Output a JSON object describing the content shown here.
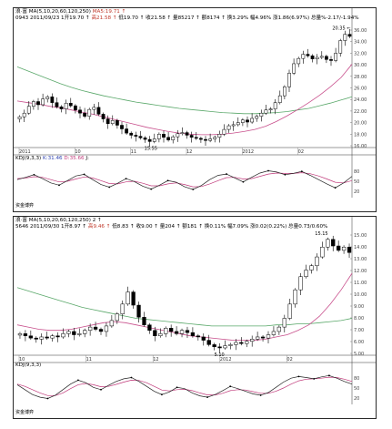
{
  "charts": [
    {
      "id": "top",
      "header_line1": "浪·富 MA(5,10,20,60,120,250)",
      "header_line1_tail": "MA5:19.71 ↑",
      "header_line2_a": "0943 2011/09/23 1开19.70 ↑",
      "header_line2_b": "高21.58 ↑",
      "header_line2_c": "低19.70 ↑ 收21.58 ↑ 量85217 ↑ 额8174 ↑ 换3.29% 幅4.96% 涨1.86(6.97%) 总量%-2.17/-1.94%",
      "high_marker": "20.35 ←",
      "low_marker": "15.55",
      "kdj_label": "KDJ(9,3,3)",
      "kdj_k": "K:31.46",
      "kdj_d": "D:35.66",
      "kdj_j": "J:",
      "footer": "资金博弈"
    },
    {
      "id": "bottom",
      "header_line1": "浪·富 MA(5,10,20,60,120,250) 2 ↑",
      "header_line1_tail": "",
      "header_line2_a": "5646 2011/09/30 1开8.97 ↑",
      "header_line2_b": "高9.46 ↑",
      "header_line2_c": "低8.83 ↑ 收9.00 ↑ 量204 ↑ 额181 ↑ 换0.11% 幅7.09% 涨0.02(0.22%) 总量0.73/0.60%",
      "high_marker": "15.15",
      "low_marker": "5.10",
      "kdj_label": "KDJ(9,3,3)",
      "kdj_k": "",
      "kdj_d": "",
      "kdj_j": "",
      "footer": "资金博弈"
    }
  ],
  "chart_data": [
    {
      "type": "candlestick",
      "title": "",
      "x_ticks": [
        "2011",
        "10",
        "11",
        "12",
        "2012",
        "02"
      ],
      "y_ticks": [
        "36.00",
        "34.00",
        "32.00",
        "30.00",
        "28.00",
        "26.00",
        "24.00",
        "22.00",
        "20.00",
        "18.00",
        "16.00"
      ],
      "ylim": [
        15,
        37
      ],
      "price_path": [
        20.5,
        21.2,
        22.5,
        23.4,
        22.8,
        23.9,
        24.3,
        23.2,
        22.4,
        22.0,
        23.1,
        22.6,
        21.8,
        21.2,
        20.6,
        21.9,
        22.3,
        21.0,
        20.1,
        19.2,
        19.8,
        18.9,
        18.2,
        17.4,
        17.0,
        16.8,
        16.5,
        16.2,
        15.8,
        16.3,
        17.2,
        16.6,
        16.1,
        16.7,
        17.3,
        17.5,
        17.0,
        16.6,
        16.4,
        16.2,
        16.0,
        16.3,
        16.6,
        17.2,
        18.1,
        18.8,
        19.0,
        19.4,
        19.9,
        19.5,
        20.2,
        20.6,
        21.2,
        21.8,
        22.0,
        23.2,
        24.5,
        26.2,
        28.8,
        30.6,
        31.6,
        32.4,
        32.1,
        31.5,
        31.8,
        32.0,
        31.4,
        31.2,
        32.6,
        35.0,
        36.2,
        35.8
      ],
      "ma_long": [
        30,
        29.2,
        28.4,
        27.6,
        26.8,
        26.1,
        25.5,
        25.0,
        24.5,
        24.1,
        23.7,
        23.3,
        23.0,
        22.7,
        22.4,
        22.1,
        21.9,
        21.7,
        21.5,
        21.3,
        21.2,
        21.1,
        21.1,
        21.2,
        21.3,
        21.5,
        21.8,
        22.1,
        22.6,
        23.1,
        23.7,
        24.3
      ],
      "ma_mid": [
        23.5,
        23.2,
        22.9,
        22.5,
        22.2,
        21.8,
        21.4,
        21.0,
        20.5,
        20.0,
        19.5,
        19.0,
        18.5,
        18.1,
        17.7,
        17.4,
        17.2,
        17.1,
        17.1,
        17.2,
        17.4,
        17.7,
        18.1,
        18.7,
        19.6,
        20.7,
        21.9,
        23.2,
        24.6,
        26.2,
        28.0,
        30.5
      ],
      "kdj_k": [
        55,
        62,
        70,
        58,
        45,
        38,
        52,
        66,
        71,
        55,
        40,
        32,
        44,
        58,
        49,
        35,
        26,
        38,
        52,
        47,
        33,
        25,
        37,
        55,
        68,
        72,
        60,
        48,
        62,
        75,
        82,
        78,
        70,
        74,
        80,
        68,
        55,
        42,
        30,
        45,
        65
      ],
      "kdj_d": [
        58,
        60,
        64,
        62,
        55,
        48,
        50,
        57,
        63,
        60,
        52,
        43,
        42,
        48,
        50,
        44,
        36,
        36,
        42,
        45,
        40,
        33,
        34,
        42,
        52,
        61,
        62,
        57,
        58,
        65,
        72,
        75,
        74,
        74,
        76,
        73,
        66,
        57,
        47,
        45,
        52
      ],
      "kdj_yticks": [
        "80",
        "50",
        "20"
      ]
    },
    {
      "type": "candlestick",
      "title": "",
      "x_ticks": [
        "10",
        "11",
        "12",
        "2012",
        "02"
      ],
      "y_ticks": [
        "15.00",
        "14.00",
        "13.00",
        "12.00",
        "11.00",
        "10.00",
        "9.00",
        "8.00",
        "7.00",
        "6.00",
        "5.00"
      ],
      "ylim": [
        4.8,
        15.6
      ],
      "price_path": [
        6.6,
        6.4,
        6.2,
        6.1,
        6.3,
        6.2,
        6.4,
        6.3,
        6.6,
        6.8,
        6.5,
        6.6,
        6.9,
        7.2,
        7.0,
        6.8,
        7.3,
        7.8,
        8.4,
        9.3,
        10.4,
        9.2,
        8.1,
        7.4,
        6.9,
        6.4,
        6.6,
        7.1,
        6.8,
        6.6,
        6.9,
        6.7,
        6.4,
        6.3,
        6.0,
        5.6,
        5.4,
        5.3,
        5.5,
        5.6,
        5.8,
        5.7,
        5.9,
        6.1,
        6.3,
        6.2,
        6.5,
        6.8,
        7.2,
        8.0,
        9.3,
        10.6,
        11.8,
        12.4,
        12.8,
        13.6,
        14.5,
        15.2,
        14.6,
        14.2,
        14.5,
        14.0
      ],
      "ma_long": [
        10.8,
        10.5,
        10.2,
        9.9,
        9.6,
        9.3,
        9.0,
        8.8,
        8.6,
        8.4,
        8.2,
        8.0,
        7.9,
        7.8,
        7.7,
        7.6,
        7.5,
        7.4,
        7.3,
        7.3,
        7.3,
        7.3,
        7.3,
        7.3,
        7.4,
        7.4,
        7.5,
        7.5,
        7.6,
        7.7,
        7.8,
        8.0
      ],
      "ma_mid": [
        7.4,
        7.2,
        7.0,
        6.9,
        6.9,
        7.0,
        7.2,
        7.4,
        7.6,
        7.7,
        7.6,
        7.4,
        7.2,
        7.0,
        6.8,
        6.6,
        6.4,
        6.3,
        6.2,
        6.1,
        6.0,
        6.0,
        6.0,
        6.1,
        6.3,
        6.5,
        6.9,
        7.4,
        8.2,
        9.3,
        10.6,
        12.1
      ],
      "kdj_k": [
        60,
        45,
        30,
        22,
        18,
        28,
        45,
        62,
        74,
        66,
        52,
        45,
        58,
        70,
        78,
        82,
        70,
        55,
        40,
        30,
        38,
        52,
        48,
        35,
        26,
        22,
        30,
        42,
        55,
        48,
        40,
        32,
        28,
        36,
        52,
        68,
        80,
        85,
        82,
        78,
        84,
        88,
        80,
        70,
        62
      ],
      "kdj_d": [
        62,
        55,
        45,
        35,
        27,
        27,
        35,
        48,
        60,
        64,
        60,
        54,
        55,
        61,
        68,
        74,
        73,
        66,
        55,
        44,
        41,
        45,
        46,
        42,
        35,
        29,
        29,
        34,
        42,
        45,
        44,
        39,
        34,
        34,
        40,
        50,
        62,
        72,
        77,
        78,
        80,
        83,
        82,
        77,
        70
      ],
      "kdj_yticks": [
        "80",
        "50",
        "20"
      ]
    }
  ]
}
